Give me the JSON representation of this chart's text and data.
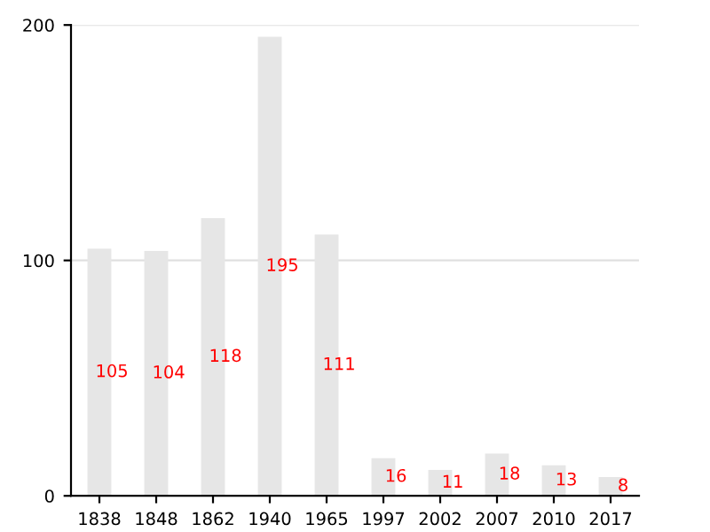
{
  "chart_data": {
    "type": "bar",
    "categories": [
      "1838",
      "1848",
      "1862",
      "1940",
      "1965",
      "1997",
      "2002",
      "2007",
      "2010",
      "2017"
    ],
    "values": [
      105,
      104,
      118,
      195,
      111,
      16,
      11,
      18,
      13,
      8
    ],
    "color": "#e6e6e6",
    "ylim": [
      0,
      200
    ],
    "yticks": [
      0,
      100,
      200
    ],
    "grid": "y",
    "data_labels": true
  }
}
